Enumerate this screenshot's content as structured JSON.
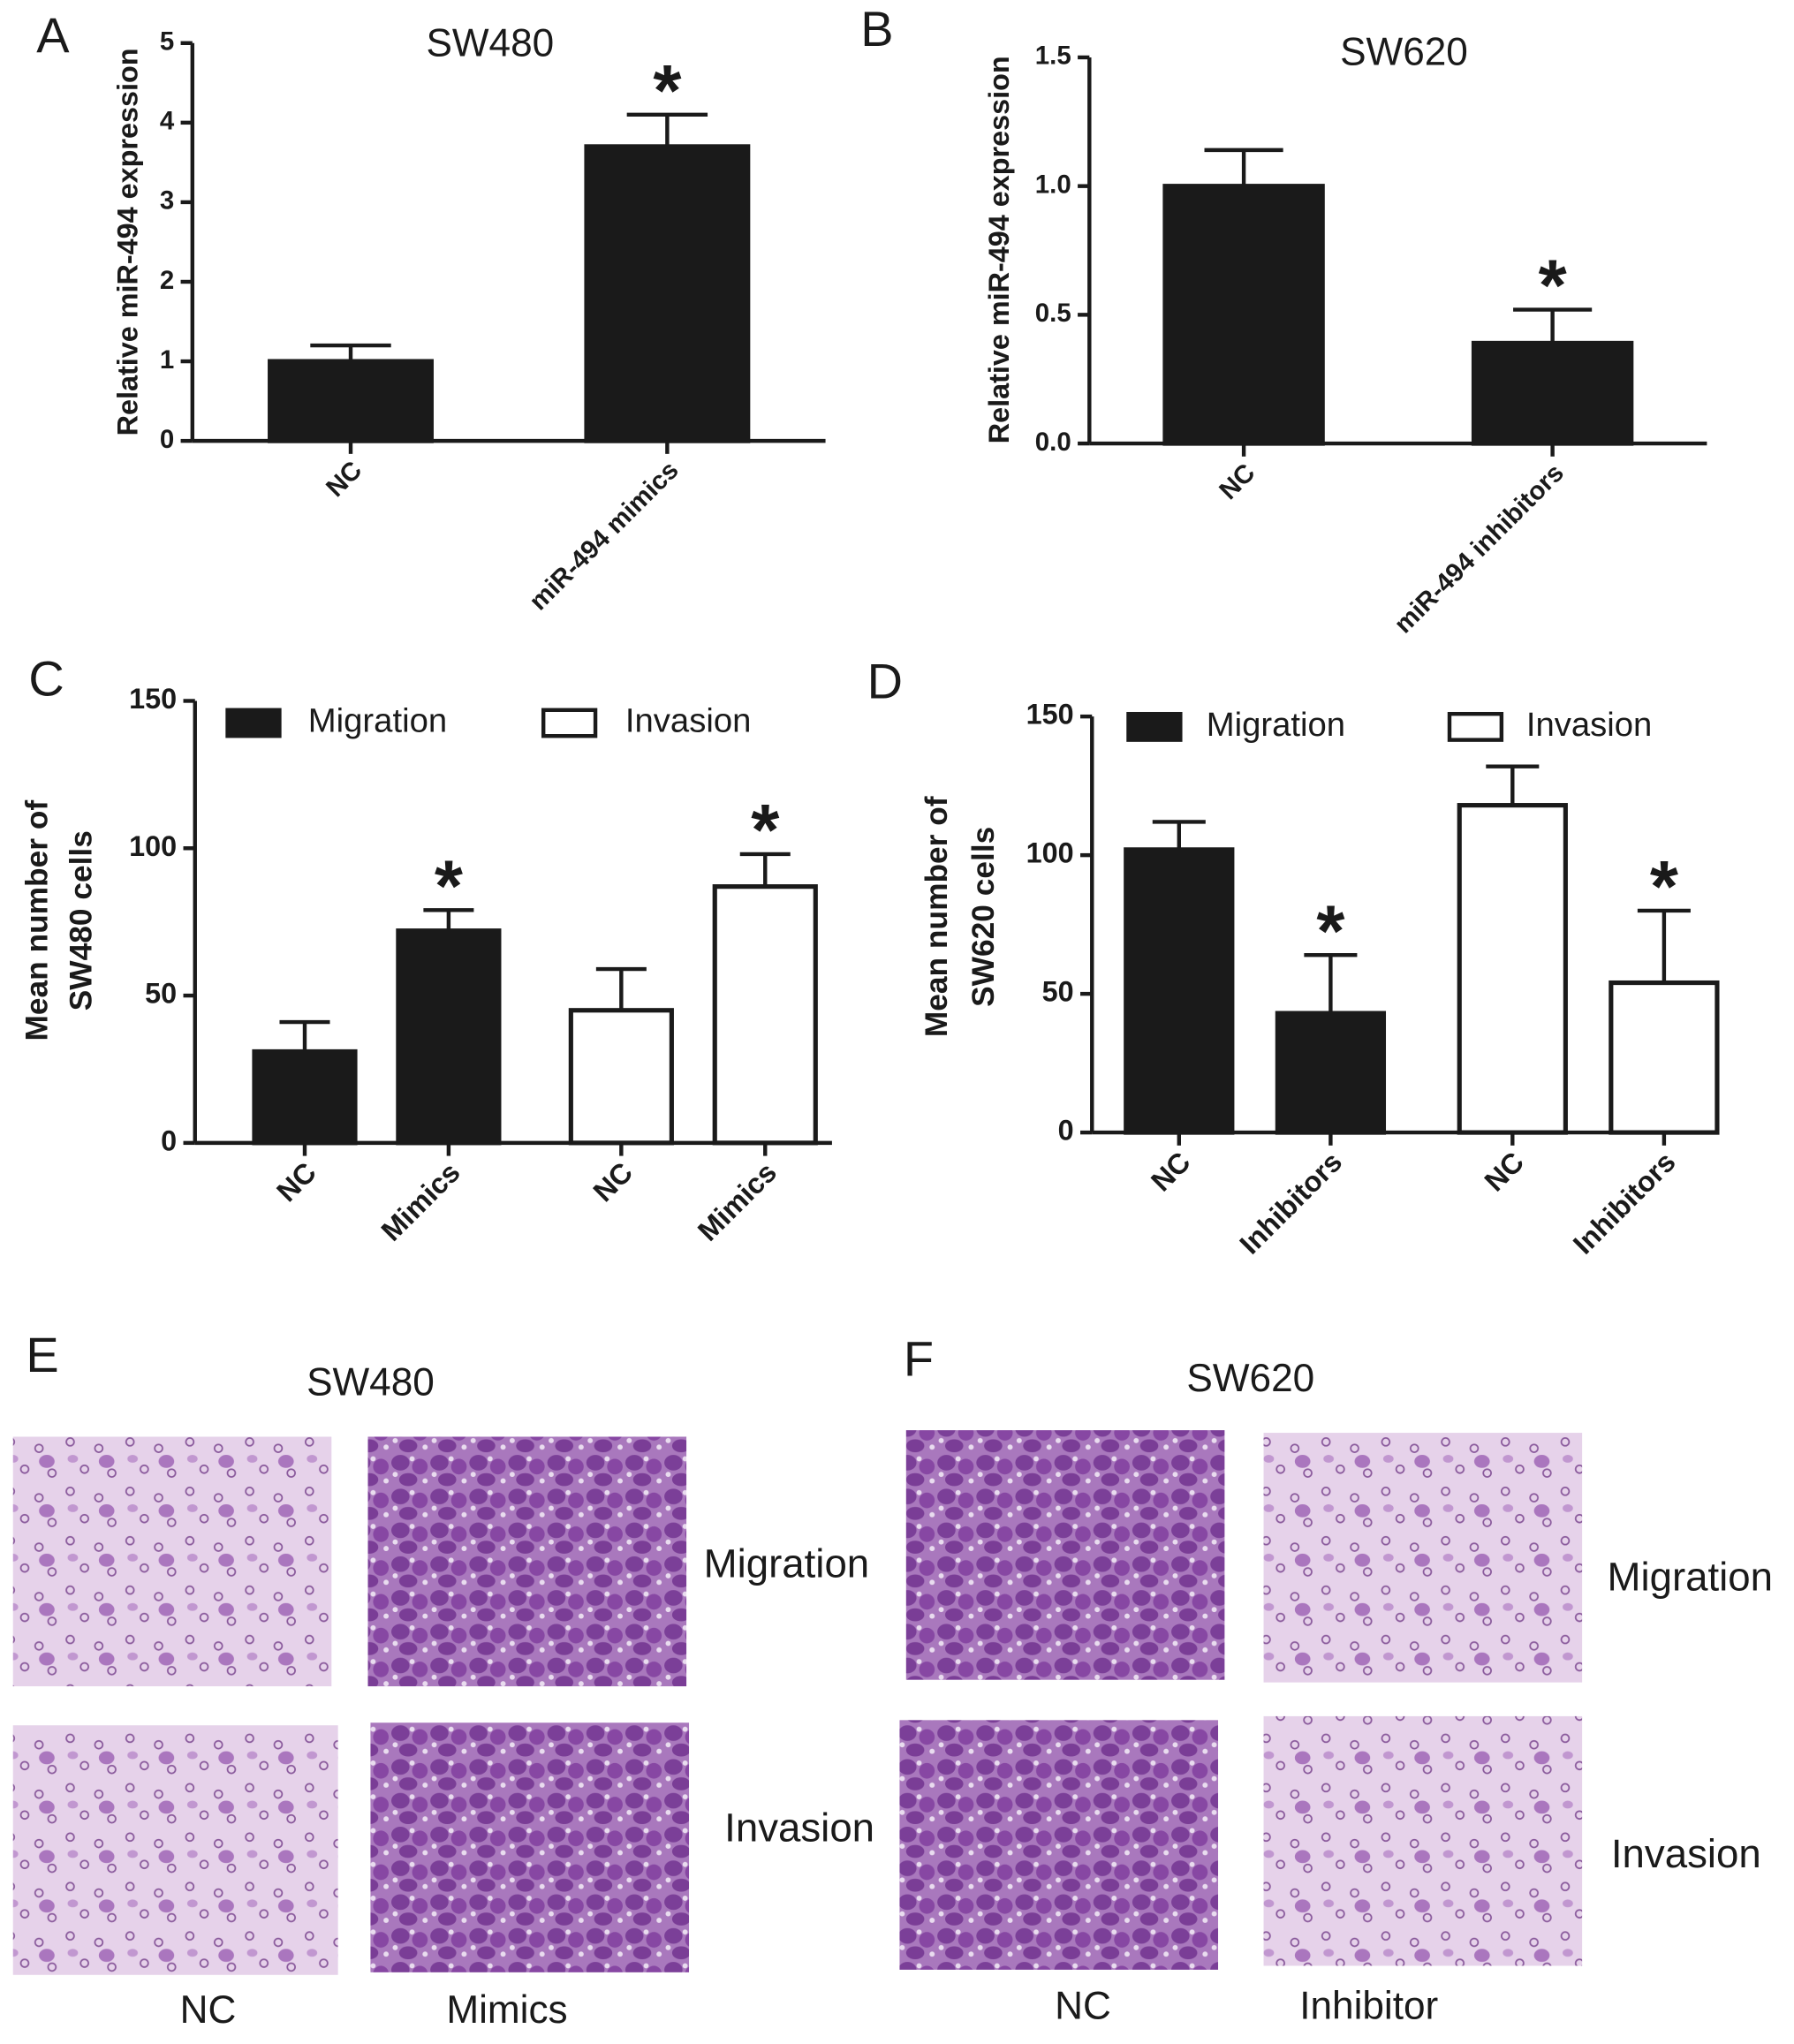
{
  "chart_data": [
    {
      "type": "bar",
      "panel": "A",
      "title": "SW480",
      "ylabel": "Relative miR-494 expression",
      "categories": [
        "NC",
        "miR-494 mimics"
      ],
      "values": [
        1.0,
        3.7
      ],
      "errors": [
        0.2,
        0.4
      ],
      "annotations": [
        null,
        "*"
      ],
      "color": "#1a1a1a",
      "ylim": [
        0,
        5
      ],
      "yticks": [
        0,
        1,
        2,
        3,
        4,
        5
      ]
    },
    {
      "type": "bar",
      "panel": "B",
      "title": "SW620",
      "ylabel": "Relative miR-494 expression",
      "categories": [
        "NC",
        "miR-494 inhibitors"
      ],
      "values": [
        1.0,
        0.39
      ],
      "errors": [
        0.14,
        0.13
      ],
      "annotations": [
        null,
        "*"
      ],
      "color": "#1a1a1a",
      "ylim": [
        0,
        1.5
      ],
      "yticks": [
        {
          "value": 0,
          "label": "0.0"
        },
        0.5,
        {
          "value": 1,
          "label": "1.0"
        },
        1.5
      ]
    },
    {
      "type": "bar",
      "panel": "C",
      "ylabel": [
        "Mean  number of",
        "SW480 cells"
      ],
      "categories": [
        "NC",
        "Mimics"
      ],
      "series": [
        {
          "name": "Migration",
          "color": "#1a1a1a",
          "values": [
            31,
            72
          ],
          "errors": [
            10,
            7
          ],
          "annotations": [
            null,
            "*"
          ]
        },
        {
          "name": "Invasion",
          "color": "#ffffff",
          "values": [
            45,
            87
          ],
          "errors": [
            14,
            11
          ],
          "annotations": [
            null,
            "*"
          ]
        }
      ],
      "ylim": [
        0,
        150
      ],
      "yticks": [
        0,
        50,
        100,
        150
      ]
    },
    {
      "type": "bar",
      "panel": "D",
      "ylabel": [
        "Mean  number of",
        "SW620 cells"
      ],
      "categories": [
        "NC",
        "Inhibitors"
      ],
      "series": [
        {
          "name": "Migration",
          "color": "#1a1a1a",
          "values": [
            102,
            43
          ],
          "errors": [
            10,
            21
          ],
          "annotations": [
            null,
            "*"
          ]
        },
        {
          "name": "Invasion",
          "color": "#ffffff",
          "values": [
            118,
            54
          ],
          "errors": [
            14,
            26
          ],
          "annotations": [
            null,
            "*"
          ]
        }
      ],
      "ylim": [
        0,
        150
      ],
      "yticks": [
        0,
        50,
        100,
        150
      ]
    }
  ],
  "image_panels": [
    {
      "panel": "E",
      "title": "SW480",
      "rows": [
        "Migration",
        "Invasion"
      ],
      "columns": [
        "NC",
        "Mimics"
      ]
    },
    {
      "panel": "F",
      "title": "SW620",
      "rows": [
        "Migration",
        "Invasion"
      ],
      "columns": [
        "NC",
        "Inhibitor"
      ]
    }
  ]
}
